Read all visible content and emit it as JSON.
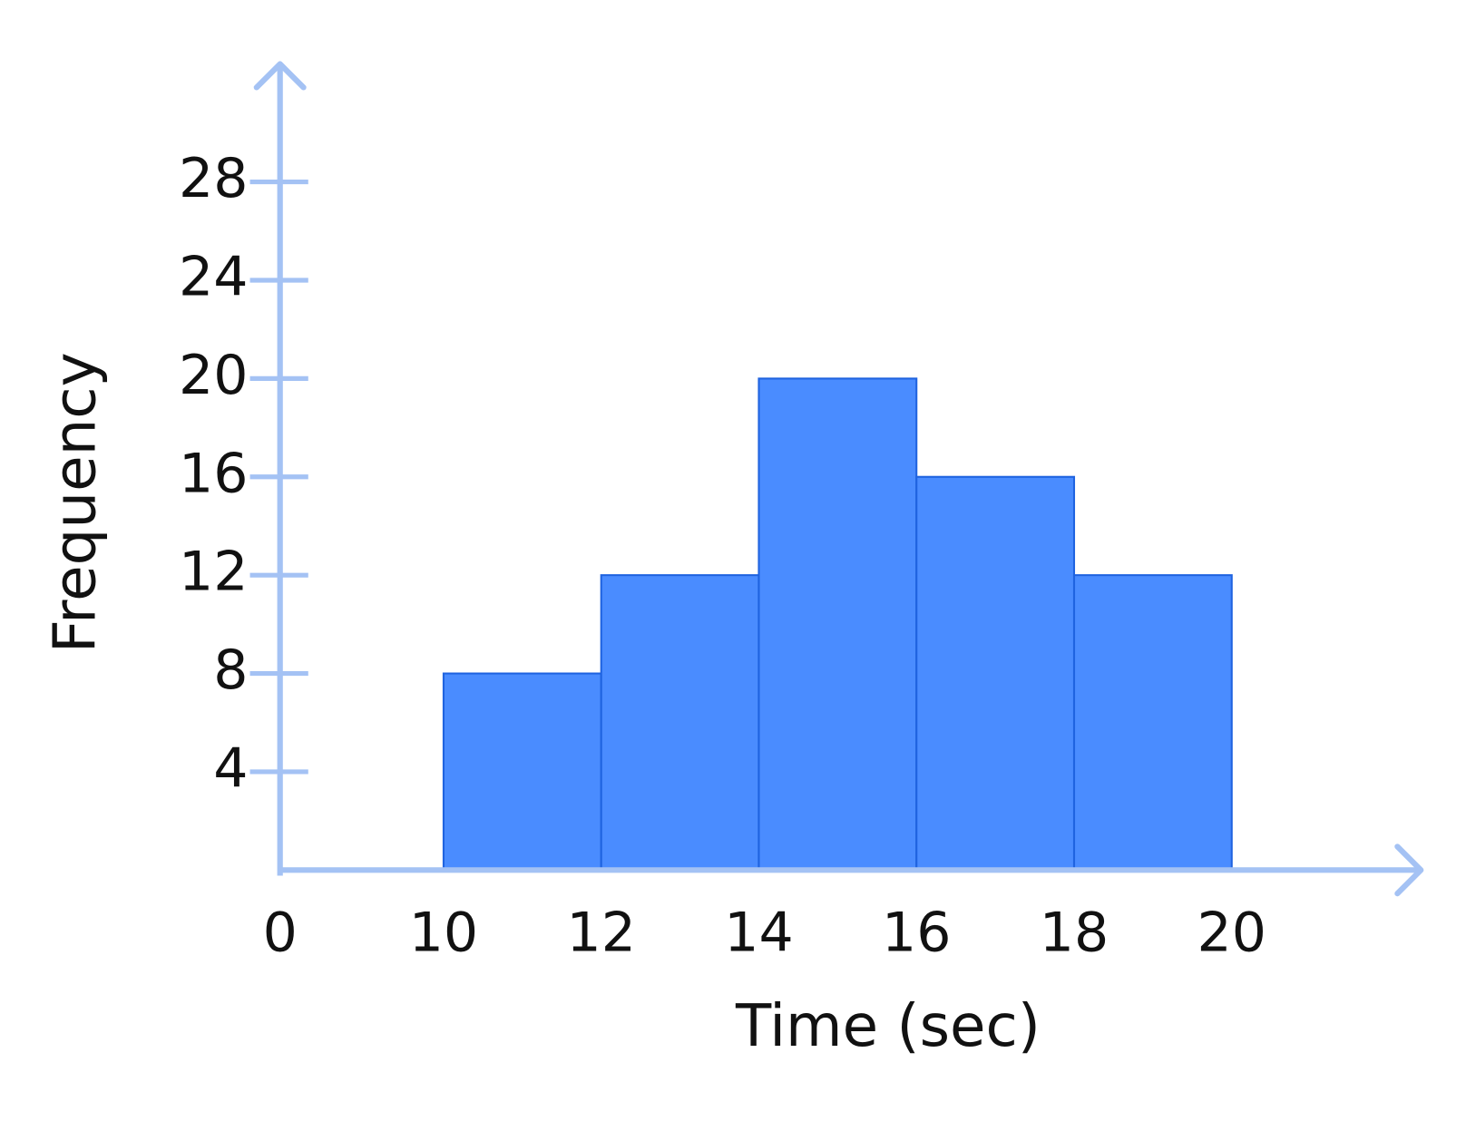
{
  "chart_data": {
    "type": "histogram",
    "xlabel": "Time (sec)",
    "ylabel": "Frequency",
    "bins": [
      10,
      12,
      14,
      16,
      18,
      20
    ],
    "values": [
      8,
      12,
      20,
      16,
      12
    ],
    "color": "#4a8cff",
    "xlim": [
      0,
      22.4
    ],
    "xticks": [
      0,
      10,
      12,
      14,
      16,
      18,
      20
    ],
    "ylim": [
      0,
      32.8
    ],
    "yticks": [
      4,
      8,
      12,
      16,
      20,
      24,
      28
    ]
  }
}
